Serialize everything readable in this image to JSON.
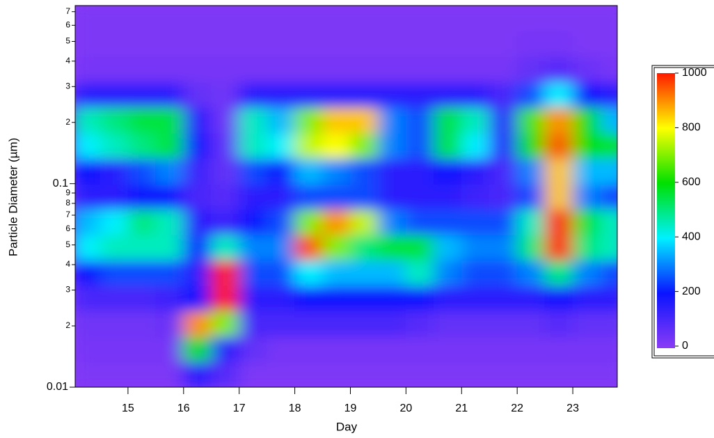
{
  "chart_data": {
    "type": "heatmap",
    "xlabel": "Day",
    "ylabel": "Particle Diameter (µm)",
    "log_y": true,
    "xlim": [
      14.05,
      23.8
    ],
    "xticks": [
      15,
      16,
      17,
      18,
      19,
      20,
      21,
      22,
      23
    ],
    "ylim": [
      0.01,
      0.75
    ],
    "yticks": [
      0.01,
      {
        "value": 0.02,
        "label": "2"
      },
      {
        "value": 0.03,
        "label": "3"
      },
      {
        "value": 0.04,
        "label": "4"
      },
      {
        "value": 0.05,
        "label": "5"
      },
      {
        "value": 0.06,
        "label": "6"
      },
      {
        "value": 0.07,
        "label": "7"
      },
      {
        "value": 0.08,
        "label": "8"
      },
      {
        "value": 0.09,
        "label": "9"
      },
      0.1,
      {
        "value": 0.2,
        "label": "2"
      },
      {
        "value": 0.3,
        "label": "3"
      },
      {
        "value": 0.4,
        "label": "4"
      },
      {
        "value": 0.5,
        "label": "5"
      },
      {
        "value": 0.6,
        "label": "6"
      },
      {
        "value": 0.7,
        "label": "7"
      }
    ],
    "zlim": [
      0,
      1000
    ],
    "zticks": [
      0,
      200,
      400,
      600,
      800,
      1000
    ],
    "colors": [
      "#8a3cf5",
      "#0a14ff",
      "#00f0ff",
      "#00e000",
      "#ffff00",
      "#ff1a00"
    ],
    "x": [
      14.25,
      14.75,
      15.25,
      15.75,
      16.25,
      16.75,
      17.25,
      17.75,
      18.25,
      18.75,
      19.25,
      19.75,
      20.25,
      20.75,
      21.25,
      21.75,
      22.25,
      22.75,
      23.25,
      23.75
    ],
    "y": [
      0.0115,
      0.0154,
      0.0205,
      0.0274,
      0.0365,
      0.0487,
      0.065,
      0.0866,
      0.115,
      0.154,
      0.205,
      0.274,
      0.365,
      0.487,
      0.65
    ],
    "z": [
      [
        20,
        20,
        20,
        20,
        150,
        80,
        20,
        20,
        20,
        20,
        20,
        20,
        20,
        20,
        20,
        20,
        20,
        20,
        20,
        20
      ],
      [
        30,
        30,
        30,
        30,
        600,
        150,
        60,
        30,
        30,
        30,
        30,
        30,
        30,
        30,
        30,
        30,
        30,
        30,
        30,
        30
      ],
      [
        40,
        40,
        40,
        50,
        900,
        700,
        100,
        100,
        100,
        100,
        100,
        100,
        80,
        60,
        60,
        60,
        60,
        80,
        60,
        60
      ],
      [
        100,
        100,
        100,
        120,
        200,
        1000,
        150,
        150,
        200,
        200,
        200,
        200,
        200,
        150,
        150,
        150,
        150,
        200,
        150,
        150
      ],
      [
        200,
        250,
        250,
        250,
        150,
        1000,
        250,
        250,
        400,
        350,
        350,
        350,
        450,
        300,
        250,
        250,
        300,
        500,
        300,
        250
      ],
      [
        400,
        450,
        450,
        450,
        200,
        450,
        300,
        300,
        950,
        700,
        500,
        550,
        550,
        350,
        300,
        300,
        500,
        1000,
        500,
        450
      ],
      [
        350,
        400,
        500,
        450,
        150,
        120,
        200,
        250,
        700,
        900,
        750,
        300,
        250,
        250,
        250,
        250,
        450,
        1000,
        550,
        450
      ],
      [
        150,
        150,
        200,
        200,
        100,
        80,
        150,
        150,
        250,
        250,
        250,
        150,
        150,
        150,
        120,
        100,
        250,
        850,
        300,
        250
      ],
      [
        200,
        150,
        250,
        300,
        120,
        60,
        250,
        200,
        350,
        300,
        250,
        150,
        150,
        200,
        150,
        100,
        300,
        850,
        350,
        350
      ],
      [
        400,
        450,
        500,
        550,
        200,
        60,
        450,
        400,
        750,
        800,
        700,
        300,
        250,
        550,
        400,
        150,
        600,
        950,
        600,
        550
      ],
      [
        450,
        500,
        550,
        550,
        150,
        40,
        450,
        350,
        700,
        850,
        850,
        300,
        250,
        550,
        450,
        150,
        650,
        900,
        600,
        350
      ],
      [
        150,
        150,
        150,
        150,
        60,
        40,
        150,
        150,
        150,
        150,
        150,
        150,
        150,
        150,
        150,
        100,
        250,
        400,
        200,
        150
      ],
      [
        30,
        30,
        30,
        30,
        30,
        30,
        30,
        30,
        30,
        30,
        30,
        30,
        30,
        30,
        30,
        30,
        60,
        80,
        50,
        30
      ],
      [
        20,
        20,
        20,
        20,
        20,
        20,
        20,
        20,
        20,
        20,
        20,
        20,
        20,
        20,
        20,
        20,
        30,
        30,
        20,
        20
      ],
      [
        20,
        20,
        20,
        20,
        20,
        20,
        20,
        20,
        20,
        20,
        20,
        20,
        20,
        20,
        20,
        20,
        20,
        20,
        20,
        20
      ]
    ]
  }
}
